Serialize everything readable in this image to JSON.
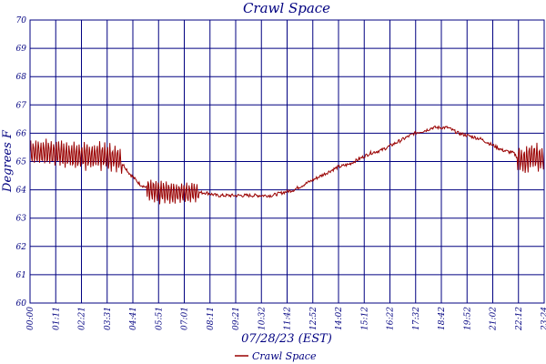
{
  "chart_data": {
    "type": "line",
    "title": "Crawl Space",
    "xlabel": "07/28/23 (EST)",
    "ylabel": "Degrees F",
    "ylim": [
      60,
      70
    ],
    "yticks": [
      "60",
      "61",
      "62",
      "63",
      "64",
      "65",
      "66",
      "67",
      "68",
      "69",
      "70"
    ],
    "xticks": [
      "00:00",
      "01:11",
      "02:21",
      "03:31",
      "04:41",
      "05:51",
      "07:01",
      "08:11",
      "09:21",
      "10:32",
      "11:42",
      "12:52",
      "14:02",
      "15:12",
      "16:22",
      "17:32",
      "18:42",
      "19:52",
      "21:02",
      "22:12",
      "23:24"
    ],
    "xlim_minutes": [
      0,
      1404
    ],
    "grid": true,
    "legend_position": "bottom-center",
    "colors": {
      "series": "#990000",
      "grid": "#000080",
      "text": "#000080"
    },
    "series": [
      {
        "name": "Crawl Space",
        "note_oscillation": "readings oscillate rapidly between about 64.6 and 65.9 F from 00:00 to ~04:10, between 63.4 and 64.4 F around 05:20-07:40, and between 64.5 and 65.7 F after ~22:10",
        "x_minutes": [
          0,
          60,
          120,
          180,
          240,
          260,
          270,
          285,
          300,
          330,
          360,
          400,
          420,
          450,
          480,
          510,
          540,
          570,
          600,
          630,
          660,
          690,
          720,
          750,
          780,
          810,
          840,
          870,
          900,
          930,
          960,
          990,
          1020,
          1050,
          1080,
          1100,
          1120,
          1140,
          1170,
          1200,
          1230,
          1260,
          1290,
          1320,
          1335,
          1350,
          1370,
          1390,
          1404
        ],
        "y": [
          65.3,
          65.3,
          65.2,
          65.2,
          65.1,
          64.8,
          64.6,
          64.4,
          64.2,
          64.0,
          63.9,
          63.9,
          63.9,
          63.9,
          63.9,
          63.8,
          63.8,
          63.8,
          63.8,
          63.8,
          63.8,
          63.9,
          64.0,
          64.2,
          64.4,
          64.6,
          64.8,
          64.9,
          65.1,
          65.3,
          65.4,
          65.6,
          65.8,
          66.0,
          66.1,
          66.2,
          66.2,
          66.2,
          66.0,
          65.9,
          65.8,
          65.6,
          65.4,
          65.3,
          65.1,
          65.0,
          65.2,
          65.1,
          65.1
        ]
      }
    ]
  }
}
